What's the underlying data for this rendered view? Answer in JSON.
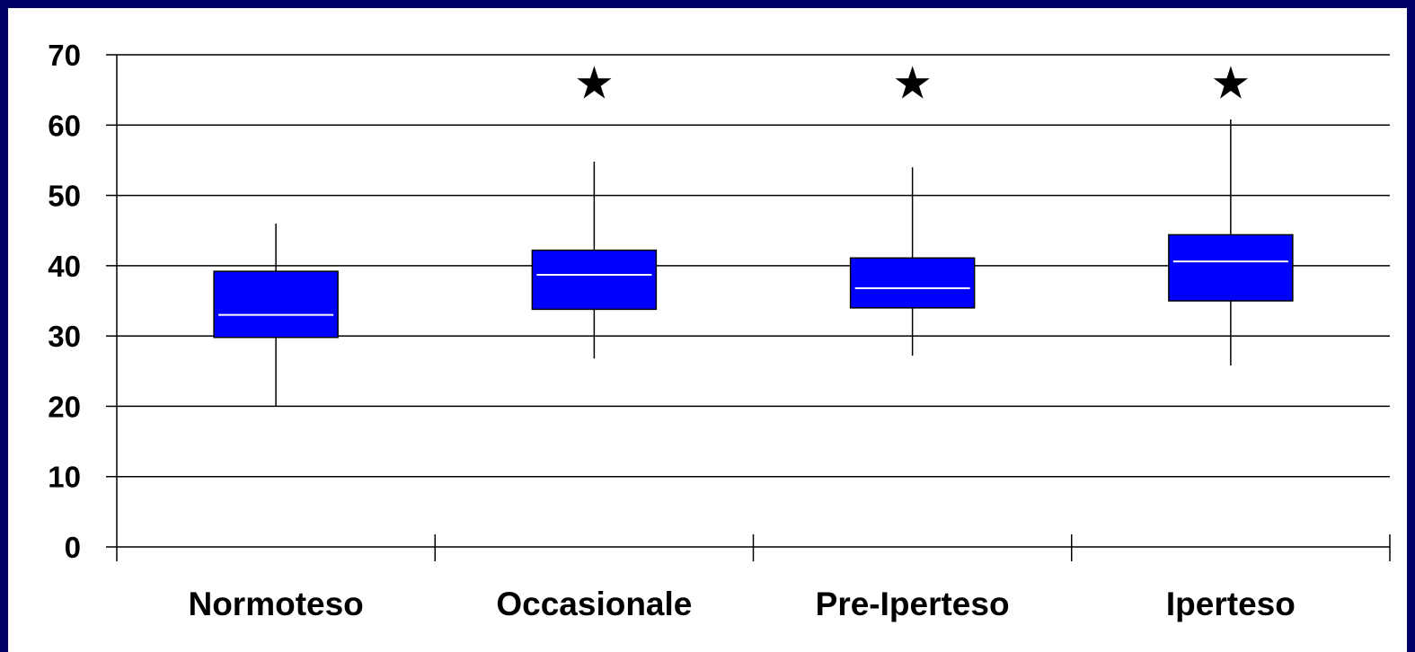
{
  "chart_data": {
    "type": "box",
    "categories": [
      "Normoteso",
      "Occasionale",
      "Pre-Iperteso",
      "Iperteso"
    ],
    "boxes": [
      {
        "min": 20,
        "q1": 29.8,
        "median": 33,
        "q3": 39.2,
        "max": 46
      },
      {
        "min": 26.8,
        "q1": 33.8,
        "median": 38.7,
        "q3": 42.2,
        "max": 54.8
      },
      {
        "min": 27.2,
        "q1": 34,
        "median": 36.8,
        "q3": 41.1,
        "max": 54
      },
      {
        "min": 25.8,
        "q1": 35,
        "median": 40.6,
        "q3": 44.4,
        "max": 60.8
      }
    ],
    "markers": [
      "",
      "★",
      "★",
      "★"
    ],
    "yticks": [
      0,
      10,
      20,
      30,
      40,
      50,
      60,
      70
    ],
    "ylim": [
      0,
      70
    ],
    "grid": true,
    "box_color": "#0000FF",
    "median_color": "#FFFFFF",
    "background": "#000066"
  }
}
